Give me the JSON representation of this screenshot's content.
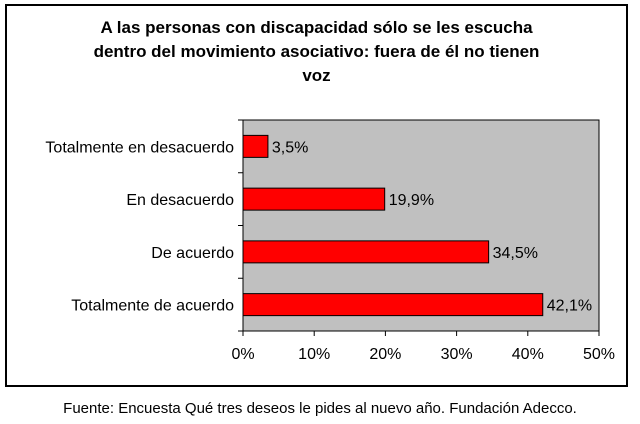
{
  "chart_data": {
    "type": "bar",
    "orientation": "horizontal",
    "title_lines": [
      "A las personas con discapacidad sólo se les escucha",
      "dentro del movimiento asociativo: fuera de él no tienen",
      "voz"
    ],
    "categories": [
      "Totalmente en desacuerdo",
      "En desacuerdo",
      "De acuerdo",
      "Totalmente de acuerdo"
    ],
    "values": [
      3.5,
      19.9,
      34.5,
      42.1
    ],
    "value_labels": [
      "3,5%",
      "19,9%",
      "34,5%",
      "42,1%"
    ],
    "xlim": [
      0,
      50
    ],
    "x_ticks": [
      0,
      10,
      20,
      30,
      40,
      50
    ],
    "x_tick_labels": [
      "0%",
      "10%",
      "20%",
      "30%",
      "40%",
      "50%"
    ],
    "xlabel": "",
    "ylabel": "",
    "legend": "none",
    "grid": false,
    "colors": {
      "bar_fill": "#ff0000",
      "bar_stroke": "#000000",
      "plot_background": "#c0c0c0"
    }
  },
  "source": "Fuente: Encuesta Qué tres deseos le pides al nuevo año. Fundación Adecco."
}
